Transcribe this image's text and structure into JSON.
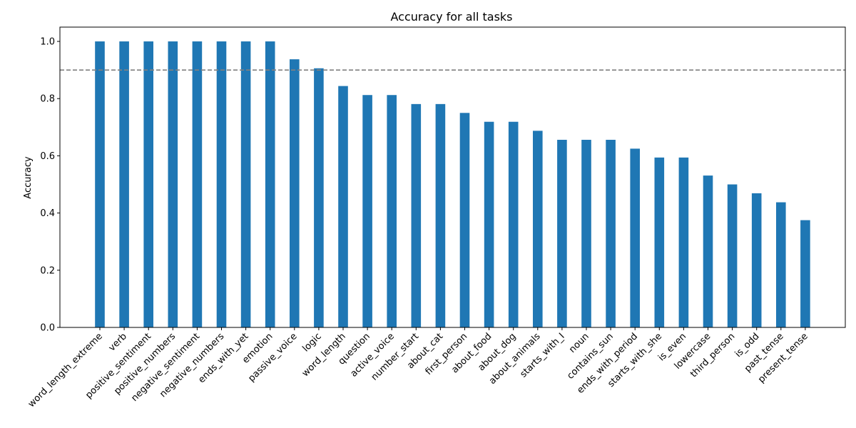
{
  "chart_data": {
    "type": "bar",
    "title": "Accuracy for all tasks",
    "xlabel": "",
    "ylabel": "Accuracy",
    "ylim": [
      0,
      1.05
    ],
    "yticks": [
      0.0,
      0.2,
      0.4,
      0.6,
      0.8,
      1.0
    ],
    "ytick_labels": [
      "0.0",
      "0.2",
      "0.4",
      "0.6",
      "0.8",
      "1.0"
    ],
    "reference_line": {
      "y": 0.9,
      "style": "dashed",
      "color": "#808080"
    },
    "bar_color": "#1f77b4",
    "grid": false,
    "categories": [
      "word_length_extreme",
      "verb",
      "positive_sentiment",
      "positive_numbers",
      "negative_sentiment",
      "negative_numbers",
      "ends_with_yet",
      "emotion",
      "passive_voice",
      "logic",
      "word_length",
      "question",
      "active_voice",
      "number_start",
      "about_cat",
      "first_person",
      "about_food",
      "about_dog",
      "about_animals",
      "starts_with_I",
      "noun",
      "contains_sun",
      "ends_with_period",
      "starts_with_she",
      "is_even",
      "lowercase",
      "third_person",
      "is_odd",
      "past_tense",
      "present_tense"
    ],
    "values": [
      1.0,
      1.0,
      1.0,
      1.0,
      1.0,
      1.0,
      1.0,
      1.0,
      0.9375,
      0.906,
      0.844,
      0.8125,
      0.8125,
      0.781,
      0.781,
      0.75,
      0.719,
      0.719,
      0.6875,
      0.656,
      0.656,
      0.656,
      0.625,
      0.594,
      0.594,
      0.531,
      0.5,
      0.469,
      0.4375,
      0.375
    ]
  }
}
